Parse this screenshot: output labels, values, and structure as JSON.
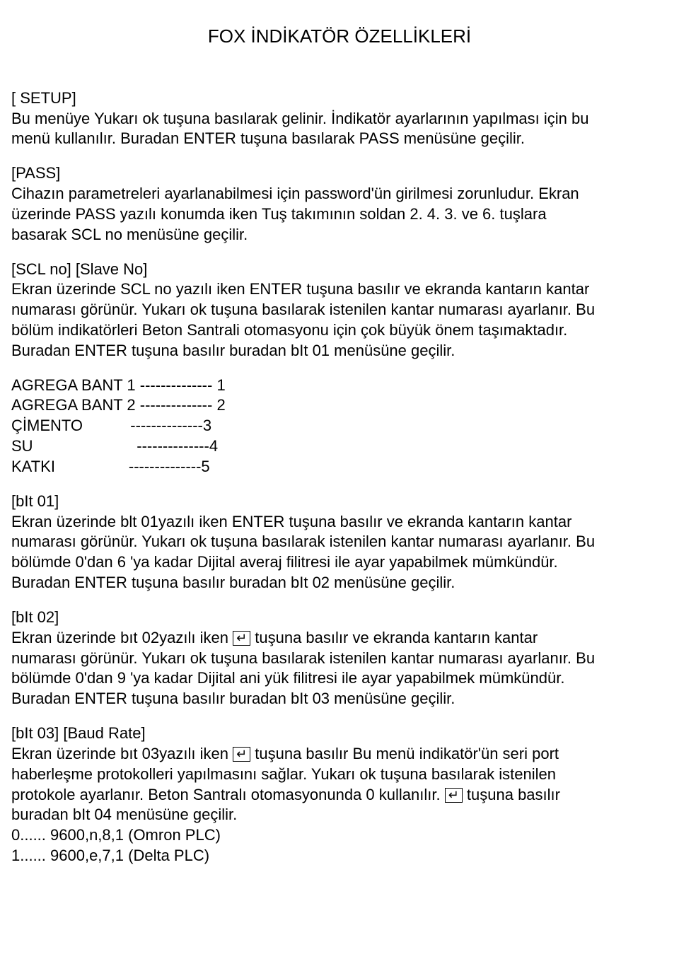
{
  "title": "FOX İNDİKATÖR ÖZELLİKLERİ",
  "setup": {
    "head": "[ SETUP]",
    "l1": " Bu menüye Yukarı ok tuşuna basılarak gelinir. İndikatör ayarlarının yapılması için bu",
    "l2": "menü kullanılır. Buradan ENTER tuşuna basılarak PASS menüsüne geçilir."
  },
  "pass": {
    "head": "[PASS]",
    "l1": "Cihazın parametreleri ayarlanabilmesi için password'ün girilmesi zorunludur. Ekran",
    "l2": "üzerinde PASS yazılı konumda iken Tuş takımının soldan 2. 4. 3. ve 6. tuşlara",
    "l3": "basarak SCL no menüsüne geçilir."
  },
  "scl": {
    "head": "[SCL no] [Slave No]",
    "l1": "Ekran üzerinde SCL no yazılı iken ENTER tuşuna basılır ve ekranda kantarın kantar",
    "l2": "numarası görünür. Yukarı ok tuşuna basılarak istenilen kantar numarası ayarlanır. Bu",
    "l3": "bölüm indikatörleri Beton Santrali otomasyonu için çok büyük önem taşımaktadır.",
    "l4": "Buradan ENTER tuşuna basılır buradan  bIt 01 menüsüne geçilir."
  },
  "assign": {
    "r1": "AGREGA BANT 1 -------------- 1",
    "r2": "AGREGA BANT 2 -------------- 2",
    "r3a": "ÇİMENTO",
    "r3b": "           --------------3",
    "r4a": "SU",
    "r4b": "                        --------------4",
    "r5a": "KATKI",
    "r5b": "                 --------------5"
  },
  "bit01": {
    "head": "[bIt 01]",
    "l1": "Ekran üzerinde blt 01yazılı iken ENTER tuşuna basılır ve ekranda kantarın kantar",
    "l2": "numarası görünür. Yukarı ok tuşuna basılarak istenilen kantar numarası ayarlanır. Bu",
    "l3": "bölümde 0'dan 6 'ya kadar Dijital averaj filitresi ile ayar yapabilmek mümkündür.",
    "l4": "Buradan ENTER tuşuna basılır buradan  bIt 02 menüsüne geçilir."
  },
  "bit02": {
    "head": "[bIt 02]",
    "l1a": "Ekran üzerinde bıt 02yazılı iken ",
    "l1b": " tuşuna basılır ve ekranda kantarın kantar",
    "l2": "numarası görünür. Yukarı ok tuşuna basılarak istenilen kantar numarası ayarlanır. Bu",
    "l3": "bölümde 0'dan 9 'ya kadar Dijital ani yük filitresi ile ayar yapabilmek mümkündür.",
    "l4": "Buradan ENTER tuşuna basılır buradan  bIt 03 menüsüne geçilir."
  },
  "bit03": {
    "head": "[bIt 03] [Baud Rate]",
    "l1a": "Ekran üzerinde bıt 03yazılı iken ",
    "l1b": "  tuşuna basılır Bu menü indikatör'ün seri port",
    "l2": "haberleşme protokolleri yapılmasını sağlar.  Yukarı ok tuşuna basılarak istenilen",
    "l3a": "protokole ayarlanır. Beton Santralı otomasyonunda 0 kullanılır. ",
    "l3b": " tuşuna basılır",
    "l4": "buradan  bIt 04 menüsüne geçilir.",
    "l5": "0...... 9600,n,8,1 (Omron PLC)",
    "l6": "1...... 9600,e,7,1 (Delta PLC)"
  },
  "enter_glyph": "↵"
}
